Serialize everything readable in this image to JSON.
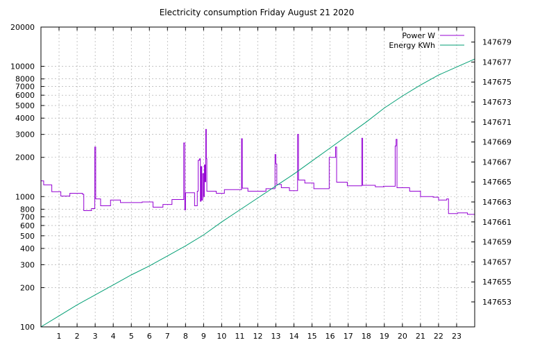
{
  "chart_data": {
    "type": "line",
    "title": "Electricity consumption Friday August 21 2020",
    "grid": true,
    "legend_position": "top-right",
    "x": {
      "range": [
        0,
        24
      ],
      "ticks": [
        1,
        2,
        3,
        4,
        5,
        6,
        7,
        8,
        9,
        10,
        11,
        12,
        13,
        14,
        15,
        16,
        17,
        18,
        19,
        20,
        21,
        22,
        23
      ]
    },
    "y_left": {
      "scale": "log",
      "range": [
        100,
        20000
      ],
      "ticks": [
        100,
        200,
        300,
        400,
        500,
        600,
        700,
        800,
        1000,
        2000,
        3000,
        4000,
        5000,
        6000,
        7000,
        8000,
        10000,
        20000
      ]
    },
    "y_right": {
      "scale": "linear",
      "range": [
        147650.5,
        147680.5
      ],
      "ticks": [
        147653,
        147655,
        147657,
        147659,
        147661,
        147663,
        147665,
        147667,
        147669,
        147671,
        147673,
        147675,
        147677,
        147679
      ]
    },
    "series": [
      {
        "name": "Power W",
        "axis": "left",
        "step": true,
        "color": "#9400d3",
        "points": [
          [
            0,
            1320
          ],
          [
            0.15,
            1230
          ],
          [
            0.6,
            1090
          ],
          [
            1.1,
            1010
          ],
          [
            1.6,
            1060
          ],
          [
            2.3,
            1040
          ],
          [
            2.37,
            780
          ],
          [
            2.8,
            810
          ],
          [
            2.98,
            2400
          ],
          [
            3.03,
            960
          ],
          [
            3.3,
            850
          ],
          [
            3.85,
            940
          ],
          [
            4.4,
            900
          ],
          [
            5.6,
            910
          ],
          [
            6.2,
            830
          ],
          [
            6.75,
            870
          ],
          [
            7.25,
            950
          ],
          [
            7.9,
            2580
          ],
          [
            7.96,
            790
          ],
          [
            8.0,
            1070
          ],
          [
            8.5,
            850
          ],
          [
            8.65,
            1100
          ],
          [
            8.7,
            1900
          ],
          [
            8.78,
            1950
          ],
          [
            8.82,
            920
          ],
          [
            8.86,
            1700
          ],
          [
            8.9,
            940
          ],
          [
            8.95,
            1500
          ],
          [
            9.0,
            1000
          ],
          [
            9.04,
            1750
          ],
          [
            9.08,
            1300
          ],
          [
            9.12,
            3280
          ],
          [
            9.15,
            1950
          ],
          [
            9.18,
            1100
          ],
          [
            9.7,
            1060
          ],
          [
            10.15,
            1130
          ],
          [
            11.1,
            2780
          ],
          [
            11.14,
            1160
          ],
          [
            11.45,
            1100
          ],
          [
            12.45,
            1150
          ],
          [
            12.95,
            2100
          ],
          [
            13.0,
            1780
          ],
          [
            13.05,
            1240
          ],
          [
            13.3,
            1170
          ],
          [
            13.75,
            1110
          ],
          [
            14.2,
            3000
          ],
          [
            14.25,
            1340
          ],
          [
            14.6,
            1270
          ],
          [
            15.1,
            1150
          ],
          [
            15.95,
            2000
          ],
          [
            16.3,
            2400
          ],
          [
            16.36,
            1290
          ],
          [
            16.95,
            1210
          ],
          [
            17.75,
            2800
          ],
          [
            17.8,
            1220
          ],
          [
            18.5,
            1190
          ],
          [
            18.95,
            1200
          ],
          [
            19.6,
            2450
          ],
          [
            19.65,
            2750
          ],
          [
            19.7,
            1170
          ],
          [
            20.4,
            1100
          ],
          [
            21.0,
            1000
          ],
          [
            21.7,
            990
          ],
          [
            22.0,
            940
          ],
          [
            22.45,
            960
          ],
          [
            22.55,
            740
          ],
          [
            23.05,
            750
          ],
          [
            23.6,
            730
          ],
          [
            24.0,
            730
          ]
        ]
      },
      {
        "name": "Energy KWh",
        "axis": "right",
        "step": false,
        "color": "#009e73",
        "points": [
          [
            0,
            147650.5
          ],
          [
            1,
            147651.6
          ],
          [
            2,
            147652.7
          ],
          [
            3,
            147653.7
          ],
          [
            4,
            147654.7
          ],
          [
            5,
            147655.7
          ],
          [
            6,
            147656.6
          ],
          [
            7,
            147657.6
          ],
          [
            8,
            147658.6
          ],
          [
            9,
            147659.7
          ],
          [
            10,
            147661.0
          ],
          [
            11,
            147662.2
          ],
          [
            12,
            147663.4
          ],
          [
            13,
            147664.6
          ],
          [
            14,
            147665.8
          ],
          [
            15,
            147667.1
          ],
          [
            16,
            147668.4
          ],
          [
            17,
            147669.7
          ],
          [
            18,
            147671.0
          ],
          [
            19,
            147672.4
          ],
          [
            20,
            147673.6
          ],
          [
            21,
            147674.7
          ],
          [
            22,
            147675.7
          ],
          [
            23,
            147676.5
          ],
          [
            24,
            147677.3
          ]
        ]
      }
    ]
  }
}
